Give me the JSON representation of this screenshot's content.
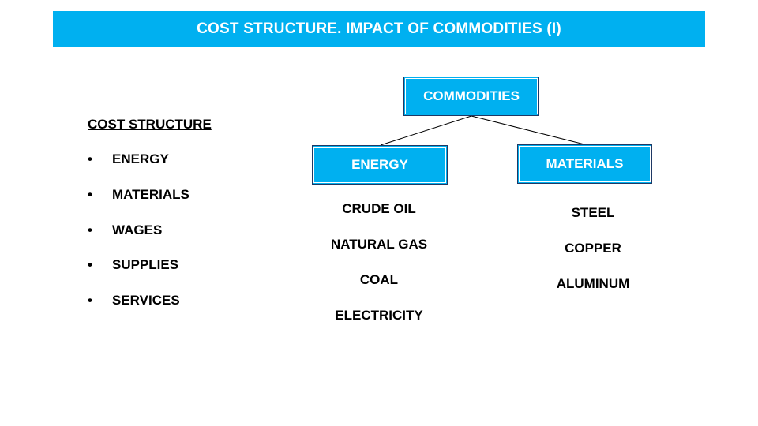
{
  "title": "COST STRUCTURE. IMPACT OF COMMODITIES (I)",
  "cost_structure": {
    "heading": "COST STRUCTURE",
    "bullet": "•",
    "items": [
      "ENERGY",
      "MATERIALS",
      "WAGES",
      "SUPPLIES",
      "SERVICES"
    ]
  },
  "tree": {
    "root": "COMMODITIES",
    "energy": {
      "label": "ENERGY",
      "items": [
        "CRUDE OIL",
        "NATURAL GAS",
        "COAL",
        "ELECTRICITY"
      ]
    },
    "materials": {
      "label": "MATERIALS",
      "items": [
        "STEEL",
        "COPPER",
        "ALUMINUM"
      ]
    }
  },
  "colors": {
    "accent": "#00b0f0",
    "box_border": "#1f3864",
    "text": "#000000",
    "header_text": "#ffffff"
  }
}
